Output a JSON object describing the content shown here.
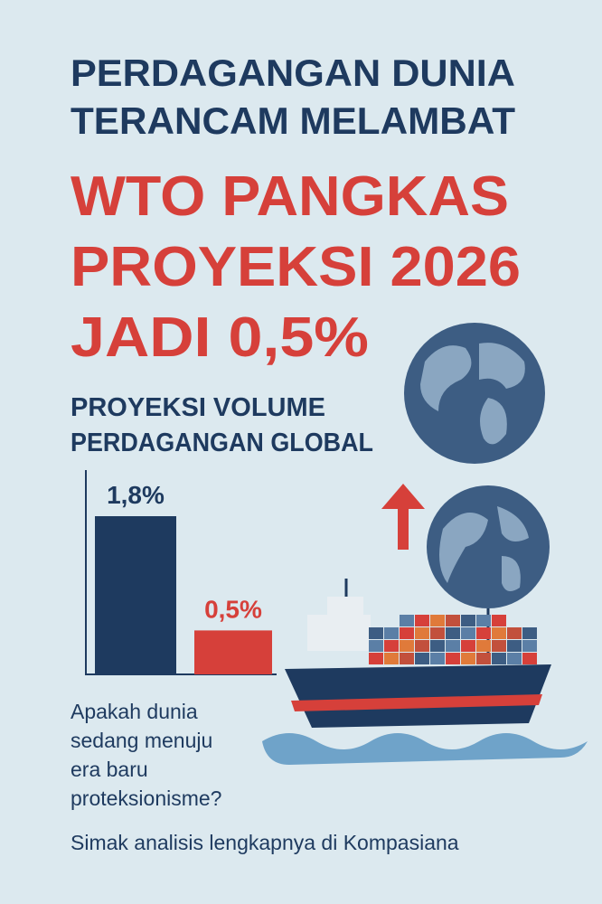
{
  "headline": [
    "PERDAGANGAN DUNIA",
    "TERANCAM MELAMBAT"
  ],
  "subheadline": [
    "WTO PANGKAS",
    "PROYEKSI 2026",
    "JADI 0,5%"
  ],
  "chart": {
    "type": "bar",
    "title": [
      "PROYEKSI VOLUME",
      "PERDAGANGAN GLOBAL"
    ],
    "values": [
      1.8,
      0.5
    ],
    "value_labels": [
      "1,8%",
      "0,5%"
    ],
    "colors": [
      "#1e3a5f",
      "#d6403a"
    ]
  },
  "question": [
    "Apakah dunia",
    "sedang menuju",
    "era baru",
    "proteksionisme?"
  ],
  "footer": "Simak analisis lengkapnya di Kompasiana"
}
